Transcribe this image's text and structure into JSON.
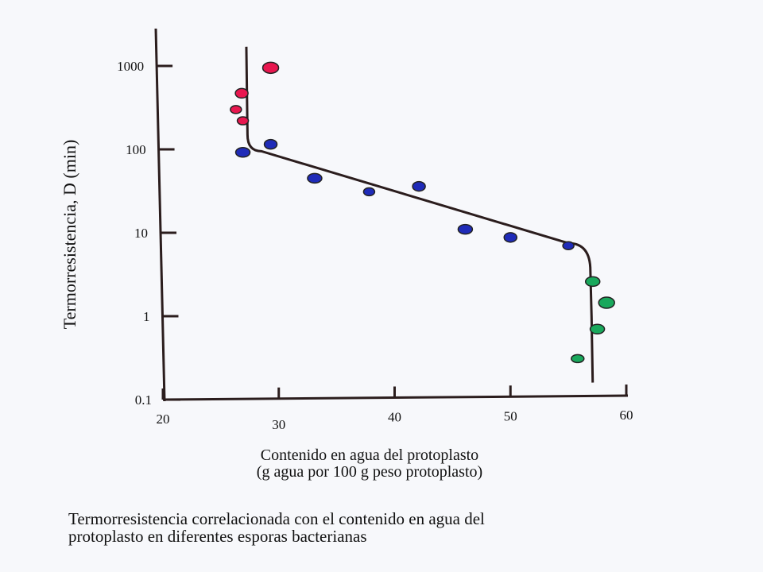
{
  "chart_data": {
    "type": "scatter",
    "xlabel_line1": "Contenido en agua del protoplasto",
    "xlabel_line2": "(g agua por 100 g peso protoplasto)",
    "ylabel": "Termorresistencia, D (min)",
    "xlim": [
      20,
      60
    ],
    "ylim": [
      0.1,
      1000
    ],
    "yscale": "log",
    "x_ticks": [
      "20",
      "30",
      "40",
      "50",
      "60"
    ],
    "y_ticks": [
      "0.1",
      "1",
      "10",
      "100",
      "1000"
    ],
    "grid": false,
    "series": [
      {
        "color": "#e8174f",
        "points": [
          {
            "x": 29.3,
            "y": 950
          },
          {
            "x": 26.8,
            "y": 470
          },
          {
            "x": 26.3,
            "y": 300
          },
          {
            "x": 26.9,
            "y": 220
          }
        ]
      },
      {
        "color": "#1f2bb8",
        "points": [
          {
            "x": 26.9,
            "y": 92
          },
          {
            "x": 29.3,
            "y": 115
          },
          {
            "x": 33.1,
            "y": 45
          },
          {
            "x": 37.8,
            "y": 31
          },
          {
            "x": 42.1,
            "y": 36
          },
          {
            "x": 46.1,
            "y": 11
          },
          {
            "x": 50.0,
            "y": 8.8
          },
          {
            "x": 55.0,
            "y": 7
          }
        ]
      },
      {
        "color": "#19a85c",
        "points": [
          {
            "x": 57.1,
            "y": 2.6
          },
          {
            "x": 58.3,
            "y": 1.45
          },
          {
            "x": 57.5,
            "y": 0.7
          },
          {
            "x": 55.8,
            "y": 0.31
          }
        ]
      }
    ],
    "trend_line": [
      {
        "x": 27.2,
        "y": 1700
      },
      {
        "x": 27.3,
        "y": 150
      },
      {
        "x": 28.5,
        "y": 95
      },
      {
        "x": 55.0,
        "y": 7.5
      },
      {
        "x": 56.9,
        "y": 3.5
      },
      {
        "x": 57.0,
        "y": 1
      },
      {
        "x": 57.1,
        "y": 0.16
      }
    ]
  },
  "caption_line1": "Termorresistencia correlacionada con el contenido en agua del",
  "caption_line2": "protoplasto en diferentes esporas bacterianas"
}
